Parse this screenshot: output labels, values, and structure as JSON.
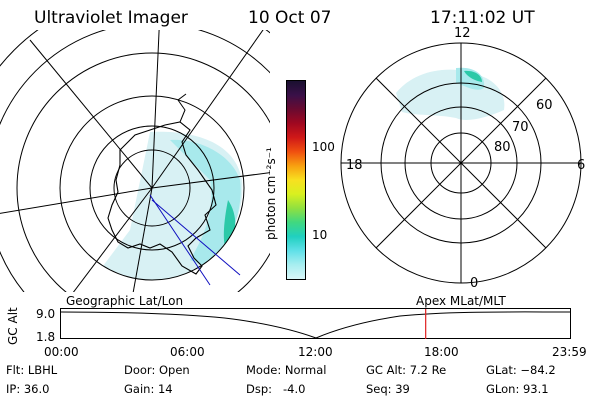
{
  "header": {
    "instrument": "Ultraviolet Imager",
    "date": "10 Oct 07",
    "time": "17:11:02 UT"
  },
  "colorbar": {
    "unit_label": "photon cm⁻²s⁻¹",
    "ticks": [
      "100",
      "10"
    ],
    "colors": [
      "#1a1030",
      "#3a1048",
      "#6a0a30",
      "#a00820",
      "#d01818",
      "#f05010",
      "#f8a010",
      "#f8e020",
      "#d8f020",
      "#90e040",
      "#40d880",
      "#20d0c0",
      "#60e0e8",
      "#a8eef0",
      "#d8f6f8"
    ]
  },
  "left_map": {
    "label": "Geographic Lat/Lon",
    "colors": {
      "aurora": "#7fe0d6",
      "aurora_bright": "#2cc9a8",
      "grid": "#000000",
      "track": "#1010c0"
    }
  },
  "right_map": {
    "label": "Apex MLat/MLT",
    "mlt_labels": {
      "top": "12",
      "left": "18",
      "right": "6",
      "bottom": "0"
    },
    "lat_labels": [
      "60",
      "70",
      "80"
    ]
  },
  "altitude_plot": {
    "y_label": "GC Alt",
    "y_ticks": [
      "9.0",
      "1.8"
    ],
    "x_ticks": [
      "00:00",
      "06:00",
      "12:00",
      "18:00",
      "23:59"
    ],
    "current_marker_time": "17:11",
    "marker_color": "#e02020"
  },
  "status": {
    "filter": "Flt: LBHL",
    "ip": "IP: 36.0",
    "door": "Door: Open",
    "gain": "Gain: 14",
    "mode": "Mode: Normal",
    "dsp": "Dsp:   -4.0",
    "gc_alt": "GC Alt: 7.2 Re",
    "seq": "Seq: 39",
    "glat": "GLat: −84.2",
    "glon": "GLon: 93.1"
  }
}
